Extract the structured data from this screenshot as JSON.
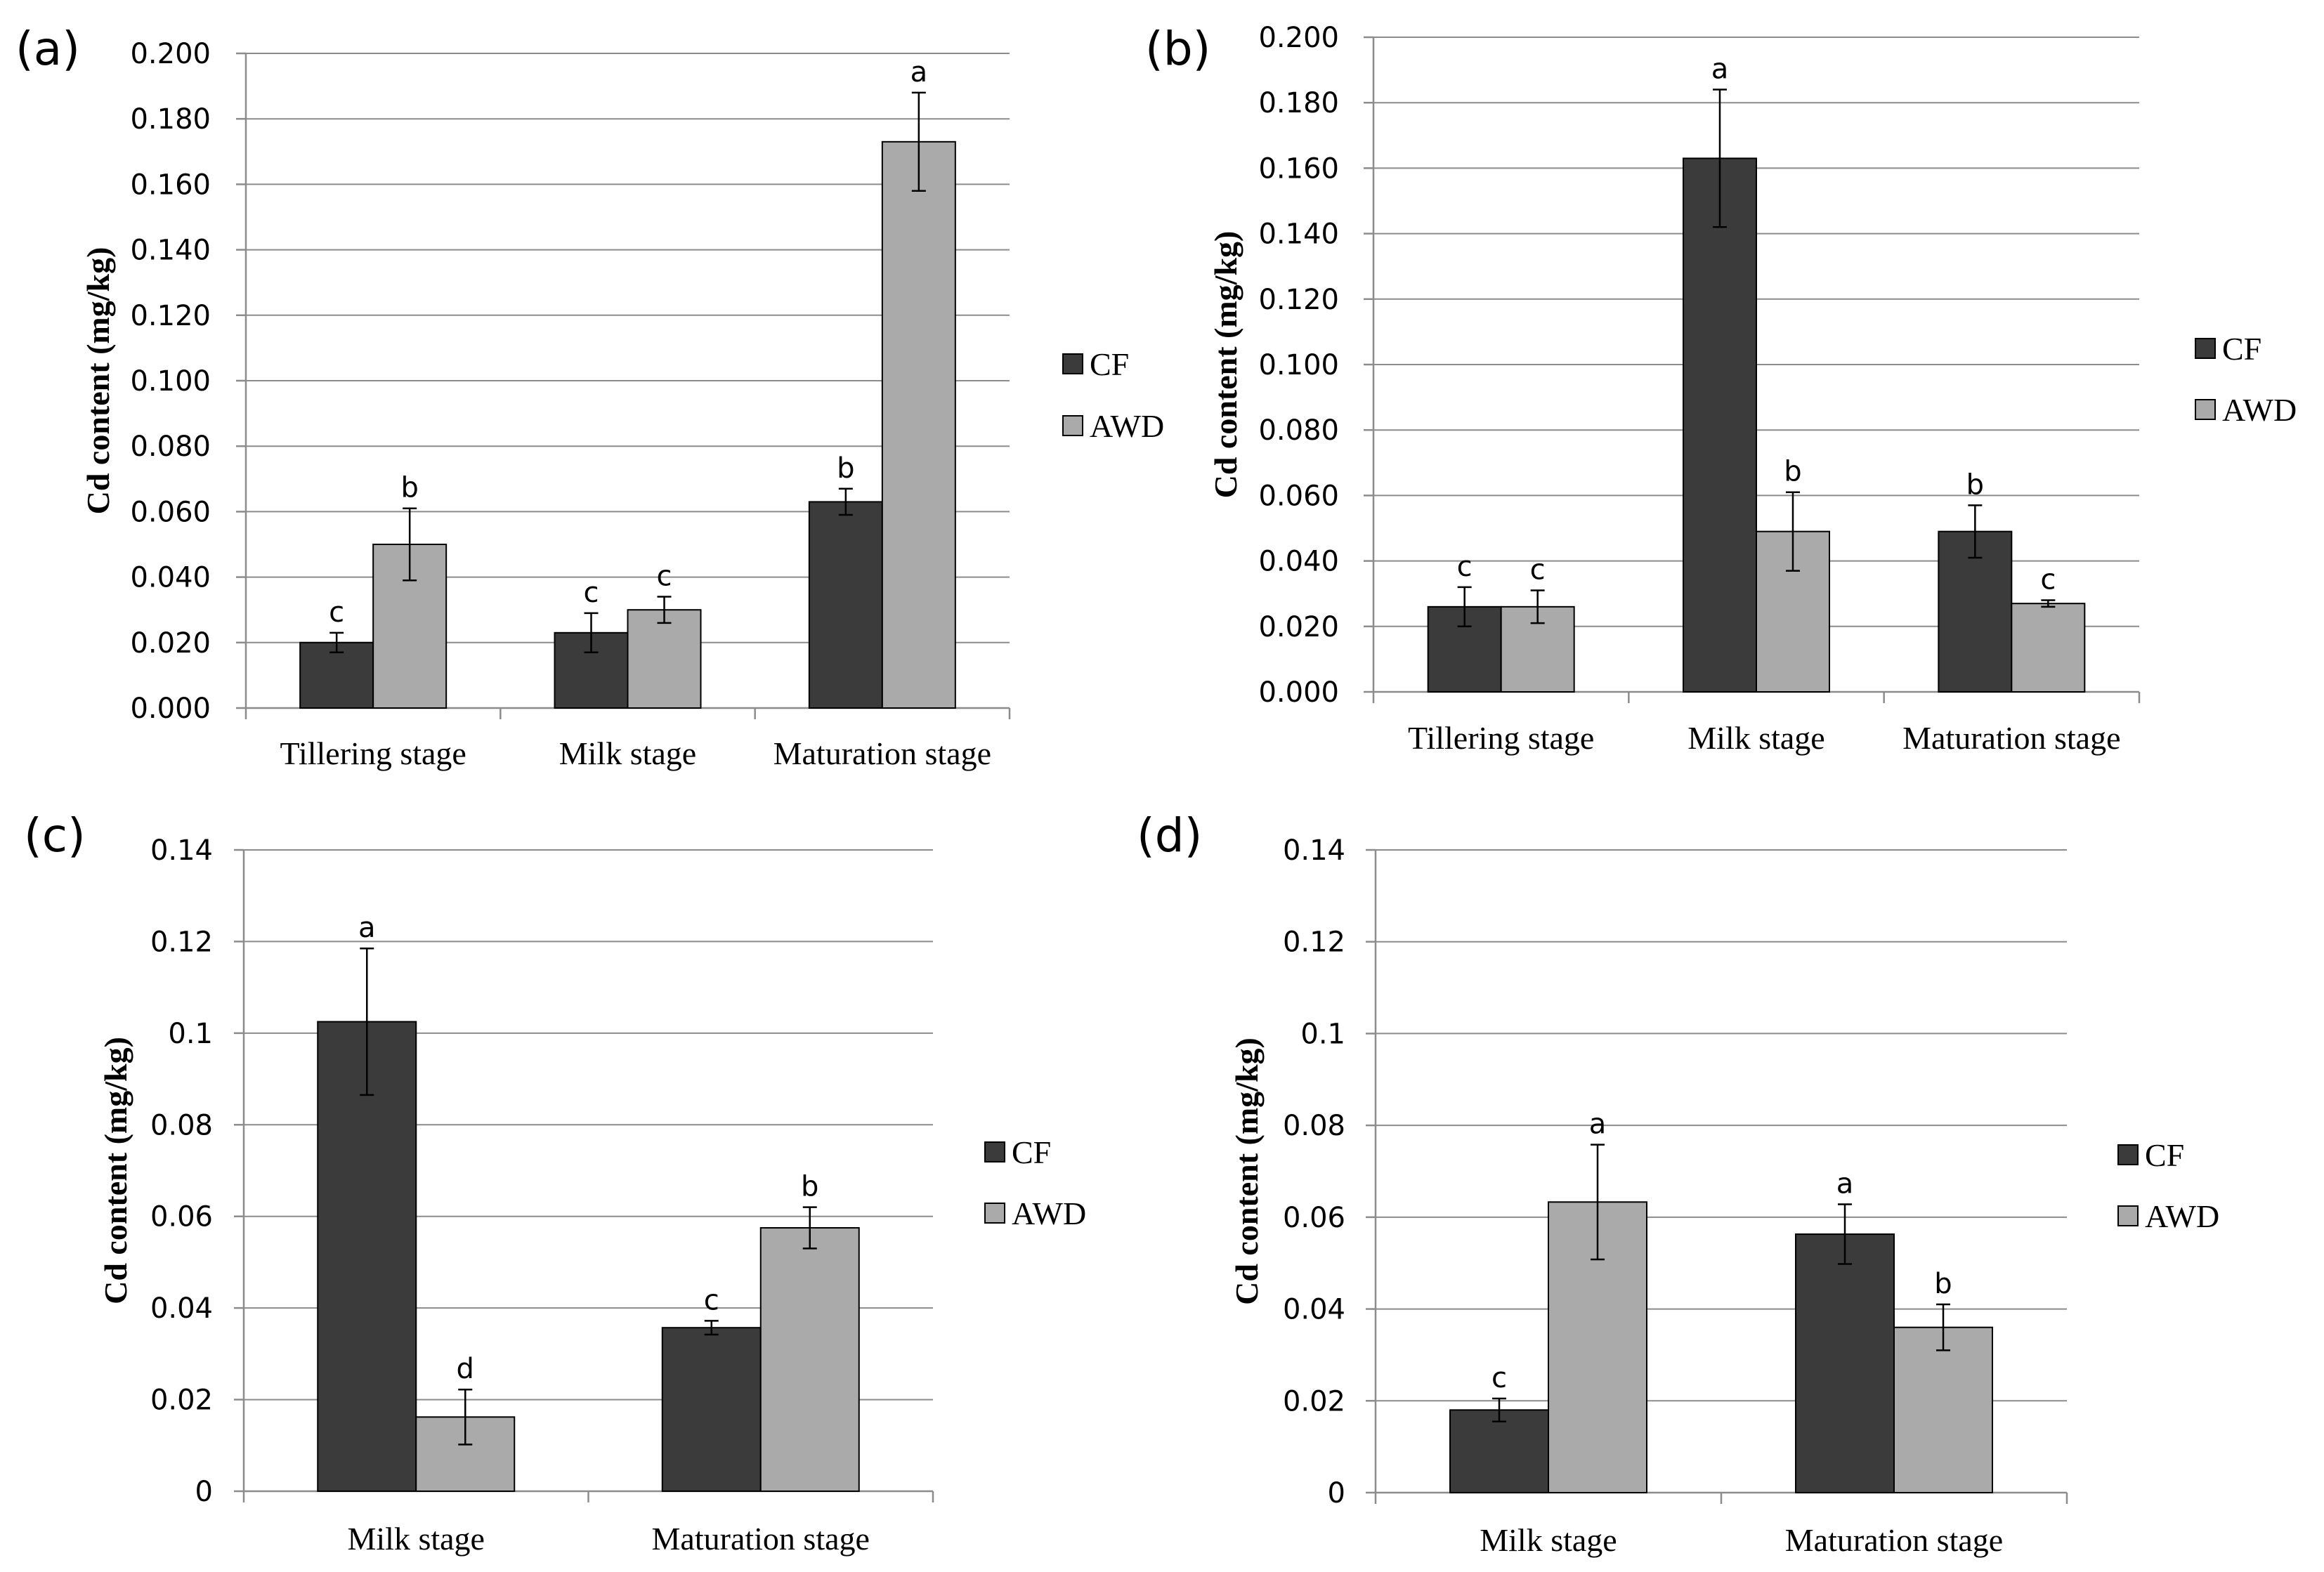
{
  "chart_data": [
    {
      "panel": "(a)",
      "type": "bar",
      "categories": [
        "Tillering stage",
        "Milk stage",
        "Maturation stage"
      ],
      "series": [
        {
          "name": "CF",
          "color": "#3b3b3b",
          "values": [
            0.02,
            0.023,
            0.063
          ],
          "errors": [
            0.003,
            0.006,
            0.004
          ],
          "letters": [
            "c",
            "c",
            "b"
          ]
        },
        {
          "name": "AWD",
          "color": "#aaaaaa",
          "values": [
            0.05,
            0.03,
            0.173
          ],
          "errors": [
            0.011,
            0.004,
            0.015
          ],
          "letters": [
            "b",
            "c",
            "a"
          ]
        }
      ],
      "ylabel": "Cd content (mg/kg)",
      "ylim": [
        0,
        0.2
      ],
      "yticks": [
        0.0,
        0.02,
        0.04,
        0.06,
        0.08,
        0.1,
        0.12,
        0.14,
        0.16,
        0.18,
        0.2
      ],
      "ytick_labels": [
        "0.000",
        "0.020",
        "0.040",
        "0.060",
        "0.080",
        "0.100",
        "0.120",
        "0.140",
        "0.160",
        "0.180",
        "0.200"
      ],
      "legend": [
        "CF",
        "AWD"
      ],
      "grid": true
    },
    {
      "panel": "(b)",
      "type": "bar",
      "categories": [
        "Tillering stage",
        "Milk stage",
        "Maturation stage"
      ],
      "series": [
        {
          "name": "CF",
          "color": "#3b3b3b",
          "values": [
            0.026,
            0.163,
            0.049
          ],
          "errors": [
            0.006,
            0.021,
            0.008
          ],
          "letters": [
            "c",
            "a",
            "b"
          ]
        },
        {
          "name": "AWD",
          "color": "#aaaaaa",
          "values": [
            0.026,
            0.049,
            0.027
          ],
          "errors": [
            0.005,
            0.012,
            0.001
          ],
          "letters": [
            "c",
            "b",
            "c"
          ]
        }
      ],
      "ylabel": "Cd content (mg/kg)",
      "ylim": [
        0,
        0.2
      ],
      "yticks": [
        0.0,
        0.02,
        0.04,
        0.06,
        0.08,
        0.1,
        0.12,
        0.14,
        0.16,
        0.18,
        0.2
      ],
      "ytick_labels": [
        "0.000",
        "0.020",
        "0.040",
        "0.060",
        "0.080",
        "0.100",
        "0.120",
        "0.140",
        "0.160",
        "0.180",
        "0.200"
      ],
      "legend": [
        "CF",
        "AWD"
      ],
      "grid": true
    },
    {
      "panel": "(c)",
      "type": "bar",
      "categories": [
        "Milk stage",
        "Maturation stage"
      ],
      "series": [
        {
          "name": "CF",
          "color": "#3b3b3b",
          "values": [
            0.1025,
            0.0357
          ],
          "errors": [
            0.016,
            0.0015
          ],
          "letters": [
            "a",
            "c"
          ]
        },
        {
          "name": "AWD",
          "color": "#aaaaaa",
          "values": [
            0.0162,
            0.0575
          ],
          "errors": [
            0.006,
            0.0045
          ],
          "letters": [
            "d",
            "b"
          ]
        }
      ],
      "ylabel": "Cd content (mg/kg)",
      "ylim": [
        0,
        0.14
      ],
      "yticks": [
        0,
        0.02,
        0.04,
        0.06,
        0.08,
        0.1,
        0.12,
        0.14
      ],
      "ytick_labels": [
        "0",
        "0.02",
        "0.04",
        "0.06",
        "0.08",
        "0.1",
        "0.12",
        "0.14"
      ],
      "legend": [
        "CF",
        "AWD"
      ],
      "grid": true
    },
    {
      "panel": "(d)",
      "type": "bar",
      "categories": [
        "Milk stage",
        "Maturation stage"
      ],
      "series": [
        {
          "name": "CF",
          "color": "#3b3b3b",
          "values": [
            0.018,
            0.0563
          ],
          "errors": [
            0.0025,
            0.0065
          ],
          "letters": [
            "c",
            "a"
          ]
        },
        {
          "name": "AWD",
          "color": "#aaaaaa",
          "values": [
            0.0633,
            0.036
          ],
          "errors": [
            0.0125,
            0.005
          ],
          "letters": [
            "a",
            "b"
          ]
        }
      ],
      "ylabel": "Cd content (mg/kg)",
      "ylim": [
        0,
        0.14
      ],
      "yticks": [
        0,
        0.02,
        0.04,
        0.06,
        0.08,
        0.1,
        0.12,
        0.14
      ],
      "ytick_labels": [
        "0",
        "0.02",
        "0.04",
        "0.06",
        "0.08",
        "0.1",
        "0.12",
        "0.14"
      ],
      "legend": [
        "CF",
        "AWD"
      ],
      "grid": true
    }
  ]
}
